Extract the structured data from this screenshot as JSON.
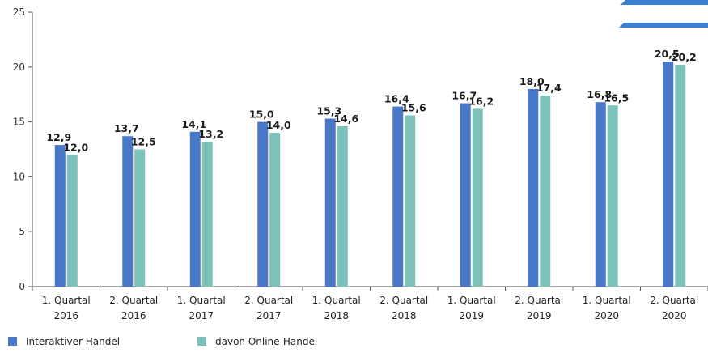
{
  "chart_data": {
    "type": "bar",
    "categories": [
      [
        "1. Quartal",
        "2016"
      ],
      [
        "2. Quartal",
        "2016"
      ],
      [
        "1. Quartal",
        "2017"
      ],
      [
        "2. Quartal",
        "2017"
      ],
      [
        "1. Quartal",
        "2018"
      ],
      [
        "2. Quartal",
        "2018"
      ],
      [
        "1. Quartal",
        "2019"
      ],
      [
        "2. Quartal",
        "2019"
      ],
      [
        "1. Quartal",
        "2020"
      ],
      [
        "2. Quartal",
        "2020"
      ]
    ],
    "series": [
      {
        "name": "Interaktiver Handel",
        "color": "#4a78c8",
        "values": [
          12.9,
          13.7,
          14.1,
          15.0,
          15.3,
          16.4,
          16.7,
          18.0,
          16.8,
          20.5
        ],
        "labels": [
          "12,9",
          "13,7",
          "14,1",
          "15,0",
          "15,3",
          "16,4",
          "16,7",
          "18,0",
          "16,8",
          "20,5"
        ]
      },
      {
        "name": "davon Online-Handel",
        "color": "#7cc1ba",
        "values": [
          12.0,
          12.5,
          13.2,
          14.0,
          14.6,
          15.6,
          16.2,
          17.4,
          16.5,
          20.2
        ],
        "labels": [
          "12,0",
          "12,5",
          "13,2",
          "14,0",
          "14,6",
          "15,6",
          "16,2",
          "17,4",
          "16,5",
          "20,2"
        ]
      }
    ],
    "ylim": [
      0,
      25
    ],
    "yticks": [
      "0",
      "5",
      "10",
      "15",
      "20",
      "25"
    ],
    "legend_position": "bottom-left",
    "grid": false,
    "title": "",
    "xlabel": "",
    "ylabel": ""
  }
}
